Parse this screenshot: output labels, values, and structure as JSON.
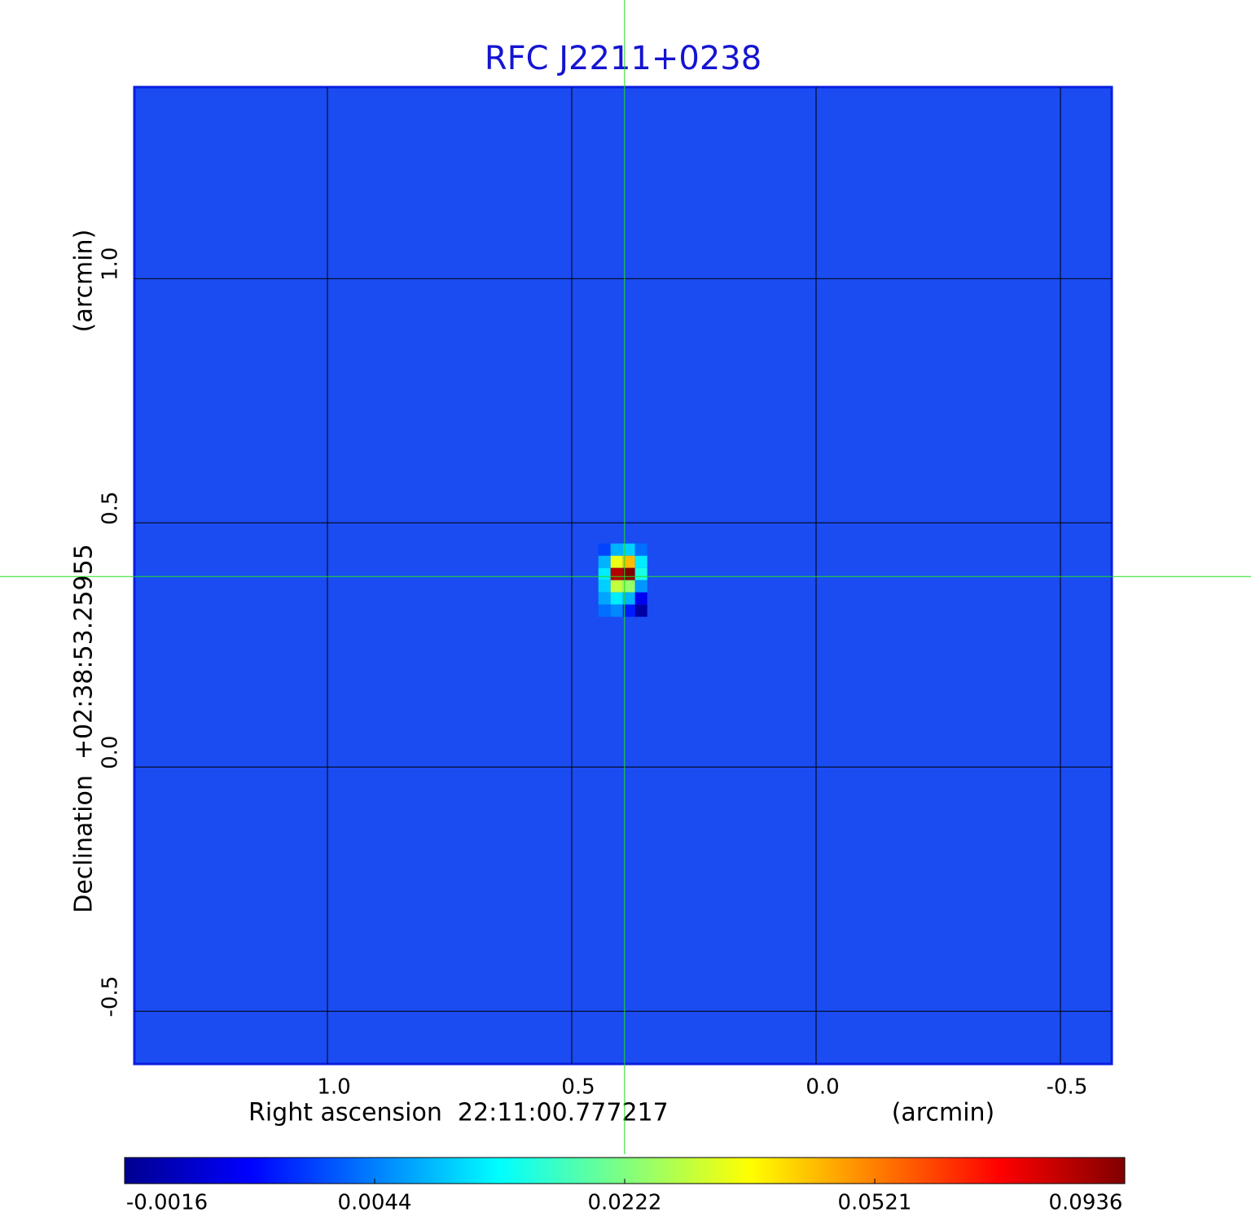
{
  "chart_data": {
    "type": "image",
    "title": "RFC J2211+0238",
    "x_label": "Right ascension  22:11:00.777217",
    "x_unit": "(arcmin)",
    "y_label": "Declination  +02:38:53.25955",
    "y_unit": "(arcmin)",
    "xlim": [
      1.395,
      -0.605
    ],
    "ylim": [
      -0.608,
      1.392
    ],
    "xticks": [
      {
        "value": 1.0,
        "label": "1.0"
      },
      0.5,
      {
        "value": 0.0,
        "label": "0.0"
      },
      -0.5
    ],
    "yticks": [
      -0.5,
      {
        "value": 0.0,
        "label": "0.0"
      },
      0.5,
      {
        "value": 1.0,
        "label": "1.0"
      }
    ],
    "grid": true,
    "crosshair": {
      "x": 0.392,
      "y": 0.39,
      "color": "#22dd22"
    },
    "colormap": "jet",
    "colorbar_ticks": [
      -0.0016,
      0.0044,
      0.0222,
      0.0521,
      0.0936
    ],
    "source": {
      "x": [
        0.433,
        0.408,
        0.383,
        0.358,
        0.433,
        0.408,
        0.383,
        0.358,
        0.433,
        0.408,
        0.383,
        0.358,
        0.433,
        0.408,
        0.383,
        0.358,
        0.433,
        0.408,
        0.383,
        0.358,
        0.433,
        0.408,
        0.383,
        0.358
      ],
      "y": [
        0.445,
        0.445,
        0.445,
        0.445,
        0.42,
        0.42,
        0.42,
        0.42,
        0.395,
        0.395,
        0.395,
        0.395,
        0.37,
        0.37,
        0.37,
        0.37,
        0.345,
        0.345,
        0.345,
        0.345,
        0.32,
        0.32,
        0.32,
        0.32
      ],
      "values": [
        0.003,
        0.008,
        0.01,
        0.004,
        0.008,
        0.035,
        0.045,
        0.012,
        0.012,
        0.085,
        0.0936,
        0.015,
        0.01,
        0.03,
        0.025,
        0.006,
        0.007,
        0.012,
        0.008,
        0.001,
        0.004,
        0.005,
        0.002,
        -0.001
      ]
    }
  }
}
